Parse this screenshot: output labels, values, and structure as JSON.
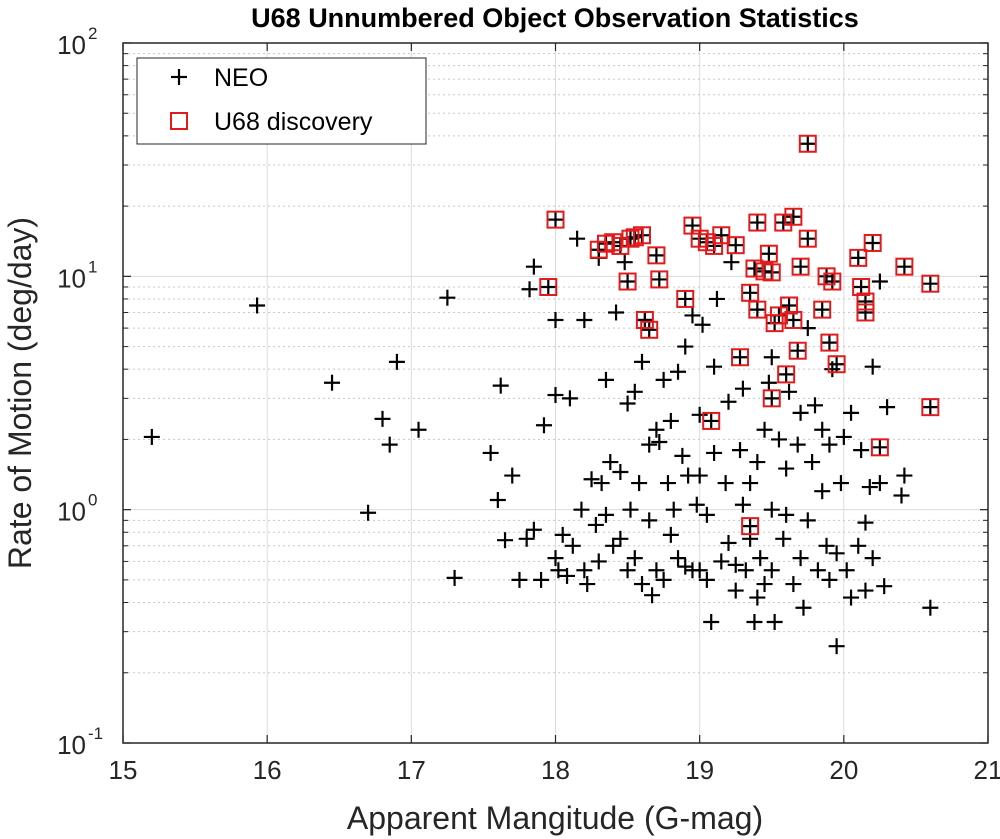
{
  "chart_data": {
    "type": "scatter",
    "title": "U68 Unnumbered Object Observation Statistics",
    "xlabel": "Apparent Mangitude (G-mag)",
    "ylabel": "Rate of Motion (deg/day)",
    "xlim": [
      15,
      21
    ],
    "ylim": [
      0.1,
      100
    ],
    "yscale": "log",
    "grid": true,
    "legend_position": "top-left",
    "xticks": [
      {
        "value": 15,
        "label": "15"
      },
      {
        "value": 16,
        "label": "16"
      },
      {
        "value": 17,
        "label": "17"
      },
      {
        "value": 18,
        "label": "18"
      },
      {
        "value": 19,
        "label": "19"
      },
      {
        "value": 20,
        "label": "20"
      },
      {
        "value": 21,
        "label": "21"
      }
    ],
    "yticks": [
      {
        "value": 0.1,
        "base": "10",
        "exp": "-1"
      },
      {
        "value": 1,
        "base": "10",
        "exp": "0"
      },
      {
        "value": 10,
        "base": "10",
        "exp": "1"
      },
      {
        "value": 100,
        "base": "10",
        "exp": "2"
      }
    ],
    "series": [
      {
        "name": "NEO",
        "marker": "plus",
        "color": "#000000",
        "points": [
          [
            15.2,
            2.05
          ],
          [
            15.93,
            7.5
          ],
          [
            16.45,
            3.5
          ],
          [
            16.7,
            0.97
          ],
          [
            16.8,
            2.45
          ],
          [
            16.85,
            1.9
          ],
          [
            16.9,
            4.3
          ],
          [
            17.05,
            2.2
          ],
          [
            17.25,
            8.1
          ],
          [
            17.3,
            0.51
          ],
          [
            17.55,
            1.75
          ],
          [
            17.6,
            1.1
          ],
          [
            17.62,
            3.4
          ],
          [
            17.65,
            0.74
          ],
          [
            17.7,
            1.4
          ],
          [
            17.75,
            0.5
          ],
          [
            17.8,
            0.75
          ],
          [
            17.82,
            8.8
          ],
          [
            17.85,
            0.82
          ],
          [
            17.85,
            11.0
          ],
          [
            17.9,
            0.5
          ],
          [
            17.92,
            2.3
          ],
          [
            18.0,
            0.62
          ],
          [
            18.0,
            6.5
          ],
          [
            18.0,
            3.1
          ],
          [
            18.02,
            0.55
          ],
          [
            18.05,
            0.78
          ],
          [
            18.08,
            0.52
          ],
          [
            18.1,
            3.0
          ],
          [
            18.12,
            0.7
          ],
          [
            18.15,
            14.5
          ],
          [
            18.18,
            1.0
          ],
          [
            18.2,
            0.55
          ],
          [
            18.2,
            6.5
          ],
          [
            18.22,
            0.48
          ],
          [
            18.25,
            1.35
          ],
          [
            18.28,
            0.86
          ],
          [
            18.3,
            12.0
          ],
          [
            18.3,
            0.6
          ],
          [
            18.32,
            1.3
          ],
          [
            18.35,
            0.95
          ],
          [
            18.35,
            3.6
          ],
          [
            18.38,
            1.6
          ],
          [
            18.4,
            0.7
          ],
          [
            18.42,
            7.0
          ],
          [
            18.45,
            1.45
          ],
          [
            18.45,
            0.75
          ],
          [
            18.48,
            11.5
          ],
          [
            18.5,
            0.55
          ],
          [
            18.5,
            2.85
          ],
          [
            18.52,
            1.0
          ],
          [
            18.55,
            0.62
          ],
          [
            18.55,
            3.2
          ],
          [
            18.58,
            1.3
          ],
          [
            18.6,
            0.48
          ],
          [
            18.6,
            4.3
          ],
          [
            18.62,
            6.5
          ],
          [
            18.65,
            0.9
          ],
          [
            18.65,
            1.9
          ],
          [
            18.67,
            0.43
          ],
          [
            18.7,
            0.55
          ],
          [
            18.7,
            2.2
          ],
          [
            18.72,
            1.95
          ],
          [
            18.75,
            0.5
          ],
          [
            18.75,
            3.6
          ],
          [
            18.78,
            1.3
          ],
          [
            18.8,
            0.78
          ],
          [
            18.8,
            2.4
          ],
          [
            18.82,
            1.0
          ],
          [
            18.85,
            0.62
          ],
          [
            18.85,
            3.9
          ],
          [
            18.88,
            1.7
          ],
          [
            18.9,
            0.57
          ],
          [
            18.9,
            5.0
          ],
          [
            18.92,
            1.4
          ],
          [
            18.95,
            0.55
          ],
          [
            18.95,
            6.8
          ],
          [
            18.98,
            1.05
          ],
          [
            19.0,
            0.55
          ],
          [
            19.0,
            1.4
          ],
          [
            19.0,
            2.55
          ],
          [
            19.02,
            6.2
          ],
          [
            19.05,
            0.5
          ],
          [
            19.05,
            0.95
          ],
          [
            19.08,
            0.33
          ],
          [
            19.1,
            1.75
          ],
          [
            19.1,
            4.1
          ],
          [
            19.12,
            8.0
          ],
          [
            19.15,
            0.6
          ],
          [
            19.18,
            1.3
          ],
          [
            19.2,
            0.72
          ],
          [
            19.2,
            2.9
          ],
          [
            19.22,
            11.5
          ],
          [
            19.25,
            0.45
          ],
          [
            19.25,
            0.58
          ],
          [
            19.28,
            1.8
          ],
          [
            19.3,
            1.05
          ],
          [
            19.3,
            3.3
          ],
          [
            19.32,
            0.55
          ],
          [
            19.35,
            0.75
          ],
          [
            19.35,
            1.3
          ],
          [
            19.38,
            0.33
          ],
          [
            19.4,
            0.42
          ],
          [
            19.4,
            1.6
          ],
          [
            19.42,
            0.62
          ],
          [
            19.45,
            2.2
          ],
          [
            19.45,
            0.48
          ],
          [
            19.48,
            3.5
          ],
          [
            19.5,
            0.55
          ],
          [
            19.5,
            1.0
          ],
          [
            19.5,
            4.5
          ],
          [
            19.52,
            0.33
          ],
          [
            19.55,
            2.0
          ],
          [
            19.58,
            0.75
          ],
          [
            19.6,
            1.5
          ],
          [
            19.6,
            0.95
          ],
          [
            19.62,
            3.2
          ],
          [
            19.65,
            0.48
          ],
          [
            19.68,
            1.9
          ],
          [
            19.7,
            0.62
          ],
          [
            19.7,
            2.6
          ],
          [
            19.72,
            0.38
          ],
          [
            19.75,
            0.9
          ],
          [
            19.75,
            6.0
          ],
          [
            19.78,
            1.6
          ],
          [
            19.8,
            2.8
          ],
          [
            19.82,
            0.55
          ],
          [
            19.85,
            1.2
          ],
          [
            19.85,
            2.2
          ],
          [
            19.88,
            0.7
          ],
          [
            19.9,
            0.5
          ],
          [
            19.9,
            1.9
          ],
          [
            19.92,
            4.0
          ],
          [
            19.95,
            0.26
          ],
          [
            19.95,
            0.65
          ],
          [
            19.98,
            1.3
          ],
          [
            20.0,
            2.05
          ],
          [
            20.02,
            0.55
          ],
          [
            20.05,
            2.6
          ],
          [
            20.05,
            0.42
          ],
          [
            20.1,
            0.7
          ],
          [
            20.12,
            1.8
          ],
          [
            20.15,
            0.45
          ],
          [
            20.15,
            0.88
          ],
          [
            20.18,
            1.25
          ],
          [
            20.2,
            0.62
          ],
          [
            20.2,
            4.1
          ],
          [
            20.25,
            1.3
          ],
          [
            20.25,
            9.5
          ],
          [
            20.28,
            0.47
          ],
          [
            20.3,
            2.75
          ],
          [
            20.4,
            1.15
          ],
          [
            20.42,
            1.4
          ],
          [
            20.6,
            0.38
          ]
        ]
      },
      {
        "name": "U68 discovery",
        "marker": "square",
        "color": "#e31a1c",
        "points": [
          [
            17.95,
            9.0
          ],
          [
            18.0,
            17.5
          ],
          [
            18.3,
            13.0
          ],
          [
            18.35,
            13.8
          ],
          [
            18.4,
            14.0
          ],
          [
            18.45,
            13.5
          ],
          [
            18.5,
            9.5
          ],
          [
            18.52,
            14.5
          ],
          [
            18.55,
            14.7
          ],
          [
            18.6,
            15.0
          ],
          [
            18.62,
            6.5
          ],
          [
            18.65,
            5.9
          ],
          [
            18.7,
            12.3
          ],
          [
            18.72,
            9.7
          ],
          [
            18.9,
            8.0
          ],
          [
            18.95,
            16.5
          ],
          [
            19.0,
            14.5
          ],
          [
            19.05,
            14.0
          ],
          [
            19.08,
            2.4
          ],
          [
            19.1,
            13.5
          ],
          [
            19.15,
            15.0
          ],
          [
            19.25,
            13.6
          ],
          [
            19.28,
            4.5
          ],
          [
            19.35,
            8.5
          ],
          [
            19.35,
            0.85
          ],
          [
            19.38,
            10.8
          ],
          [
            19.4,
            7.2
          ],
          [
            19.4,
            17.0
          ],
          [
            19.45,
            10.5
          ],
          [
            19.48,
            12.5
          ],
          [
            19.5,
            3.0
          ],
          [
            19.5,
            10.4
          ],
          [
            19.52,
            6.3
          ],
          [
            19.55,
            6.8
          ],
          [
            19.58,
            17.0
          ],
          [
            19.6,
            3.8
          ],
          [
            19.62,
            7.5
          ],
          [
            19.65,
            6.5
          ],
          [
            19.68,
            4.8
          ],
          [
            19.65,
            18.0
          ],
          [
            19.7,
            11.0
          ],
          [
            19.75,
            14.5
          ],
          [
            19.75,
            37.0
          ],
          [
            19.85,
            7.2
          ],
          [
            19.88,
            10.0
          ],
          [
            19.9,
            5.2
          ],
          [
            19.92,
            9.5
          ],
          [
            19.95,
            4.2
          ],
          [
            20.1,
            12.0
          ],
          [
            20.12,
            9.0
          ],
          [
            20.15,
            7.0
          ],
          [
            20.15,
            7.8
          ],
          [
            20.2,
            13.9
          ],
          [
            20.25,
            1.85
          ],
          [
            20.42,
            11.0
          ],
          [
            20.6,
            9.3
          ],
          [
            20.6,
            2.75
          ]
        ]
      }
    ]
  }
}
